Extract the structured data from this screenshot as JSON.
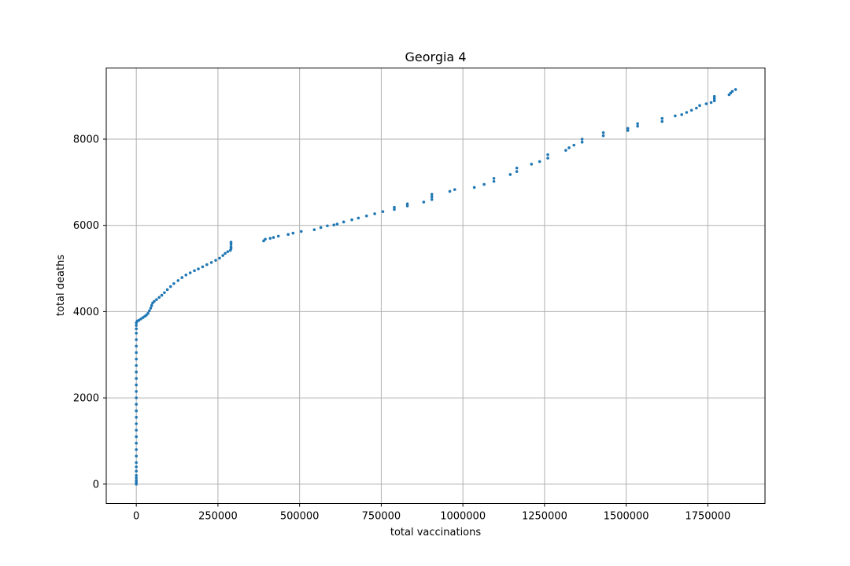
{
  "chart_data": {
    "type": "scatter",
    "title": "Georgia 4",
    "xlabel": "total vaccinations",
    "ylabel": "total deaths",
    "xlim": [
      -92000,
      1925000
    ],
    "ylim": [
      -450,
      9650
    ],
    "xticks": [
      0,
      250000,
      500000,
      750000,
      1000000,
      1250000,
      1500000,
      1750000
    ],
    "xtick_labels": [
      "0",
      "250000",
      "500000",
      "750000",
      "1000000",
      "1250000",
      "1500000",
      "1750000"
    ],
    "yticks": [
      0,
      2000,
      4000,
      6000,
      8000
    ],
    "ytick_labels": [
      "0",
      "2000",
      "4000",
      "6000",
      "8000"
    ],
    "grid": true,
    "marker_color": "#1f77b4",
    "series": [
      {
        "points": [
          [
            0,
            0
          ],
          [
            0,
            40
          ],
          [
            0,
            80
          ],
          [
            0,
            140
          ],
          [
            0,
            200
          ],
          [
            0,
            300
          ],
          [
            0,
            400
          ],
          [
            0,
            500
          ],
          [
            0,
            650
          ],
          [
            0,
            800
          ],
          [
            0,
            950
          ],
          [
            0,
            1100
          ],
          [
            0,
            1250
          ],
          [
            0,
            1400
          ],
          [
            0,
            1550
          ],
          [
            0,
            1700
          ],
          [
            0,
            1850
          ],
          [
            0,
            2000
          ],
          [
            0,
            2150
          ],
          [
            0,
            2300
          ],
          [
            0,
            2450
          ],
          [
            0,
            2600
          ],
          [
            0,
            2750
          ],
          [
            0,
            2900
          ],
          [
            0,
            3050
          ],
          [
            0,
            3200
          ],
          [
            0,
            3350
          ],
          [
            0,
            3500
          ],
          [
            0,
            3600
          ],
          [
            0,
            3680
          ],
          [
            0,
            3740
          ],
          [
            3000,
            3780
          ],
          [
            8000,
            3800
          ],
          [
            14000,
            3830
          ],
          [
            20000,
            3860
          ],
          [
            26000,
            3890
          ],
          [
            31000,
            3920
          ],
          [
            36000,
            3960
          ],
          [
            40000,
            4020
          ],
          [
            44000,
            4080
          ],
          [
            47000,
            4140
          ],
          [
            50000,
            4200
          ],
          [
            55000,
            4240
          ],
          [
            62000,
            4280
          ],
          [
            70000,
            4330
          ],
          [
            78000,
            4380
          ],
          [
            86000,
            4440
          ],
          [
            95000,
            4510
          ],
          [
            105000,
            4580
          ],
          [
            115000,
            4650
          ],
          [
            128000,
            4720
          ],
          [
            140000,
            4790
          ],
          [
            152000,
            4850
          ],
          [
            165000,
            4900
          ],
          [
            178000,
            4950
          ],
          [
            190000,
            4990
          ],
          [
            203000,
            5040
          ],
          [
            216000,
            5090
          ],
          [
            230000,
            5140
          ],
          [
            243000,
            5190
          ],
          [
            255000,
            5240
          ],
          [
            265000,
            5300
          ],
          [
            272000,
            5350
          ],
          [
            280000,
            5390
          ],
          [
            288000,
            5420
          ],
          [
            290000,
            5460
          ],
          [
            290000,
            5500
          ],
          [
            290000,
            5560
          ],
          [
            290000,
            5610
          ],
          [
            390000,
            5640
          ],
          [
            395000,
            5680
          ],
          [
            410000,
            5700
          ],
          [
            420000,
            5720
          ],
          [
            435000,
            5750
          ],
          [
            465000,
            5790
          ],
          [
            480000,
            5820
          ],
          [
            505000,
            5860
          ],
          [
            545000,
            5900
          ],
          [
            565000,
            5950
          ],
          [
            585000,
            5990
          ],
          [
            605000,
            6010
          ],
          [
            615000,
            6030
          ],
          [
            635000,
            6080
          ],
          [
            660000,
            6130
          ],
          [
            680000,
            6170
          ],
          [
            705000,
            6220
          ],
          [
            730000,
            6270
          ],
          [
            755000,
            6320
          ],
          [
            790000,
            6370
          ],
          [
            790000,
            6420
          ],
          [
            830000,
            6450
          ],
          [
            830000,
            6500
          ],
          [
            880000,
            6540
          ],
          [
            905000,
            6600
          ],
          [
            905000,
            6660
          ],
          [
            905000,
            6720
          ],
          [
            960000,
            6790
          ],
          [
            975000,
            6830
          ],
          [
            1035000,
            6880
          ],
          [
            1065000,
            6950
          ],
          [
            1095000,
            7020
          ],
          [
            1095000,
            7090
          ],
          [
            1145000,
            7180
          ],
          [
            1165000,
            7250
          ],
          [
            1165000,
            7330
          ],
          [
            1210000,
            7420
          ],
          [
            1235000,
            7480
          ],
          [
            1260000,
            7560
          ],
          [
            1260000,
            7640
          ],
          [
            1315000,
            7740
          ],
          [
            1325000,
            7800
          ],
          [
            1340000,
            7860
          ],
          [
            1365000,
            7930
          ],
          [
            1365000,
            8000
          ],
          [
            1430000,
            8080
          ],
          [
            1430000,
            8150
          ],
          [
            1505000,
            8200
          ],
          [
            1505000,
            8250
          ],
          [
            1535000,
            8300
          ],
          [
            1535000,
            8360
          ],
          [
            1610000,
            8410
          ],
          [
            1610000,
            8480
          ],
          [
            1650000,
            8540
          ],
          [
            1670000,
            8570
          ],
          [
            1685000,
            8620
          ],
          [
            1700000,
            8670
          ],
          [
            1715000,
            8720
          ],
          [
            1725000,
            8780
          ],
          [
            1745000,
            8820
          ],
          [
            1760000,
            8850
          ],
          [
            1770000,
            8890
          ],
          [
            1770000,
            8940
          ],
          [
            1770000,
            8990
          ],
          [
            1815000,
            9030
          ],
          [
            1820000,
            9070
          ],
          [
            1825000,
            9110
          ],
          [
            1835000,
            9150
          ]
        ]
      }
    ]
  }
}
